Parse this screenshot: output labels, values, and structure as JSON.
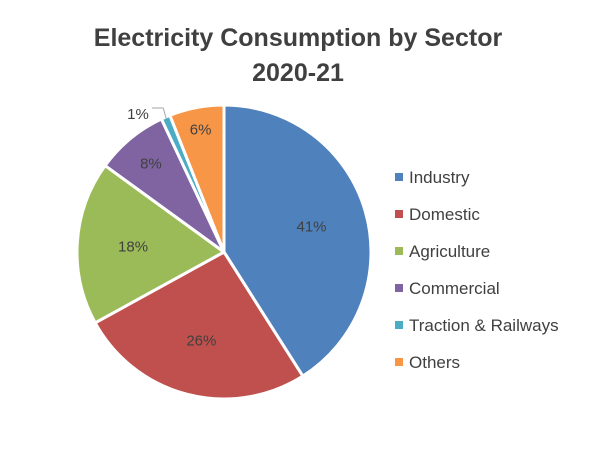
{
  "chart_data": {
    "type": "pie",
    "title": "Electricity Consumption by Sector",
    "subtitle": "2020-21",
    "slices": [
      {
        "label": "Industry",
        "value": 41,
        "display": "41%",
        "color": "#4F81BD"
      },
      {
        "label": "Domestic",
        "value": 26,
        "display": "26%",
        "color": "#C0504D"
      },
      {
        "label": "Agriculture",
        "value": 18,
        "display": "18%",
        "color": "#9BBB59"
      },
      {
        "label": "Commercial",
        "value": 8,
        "display": "8%",
        "color": "#8064A2"
      },
      {
        "label": "Traction & Railways",
        "value": 1,
        "display": "1%",
        "color": "#4BACC6"
      },
      {
        "label": "Others",
        "value": 6,
        "display": "6%",
        "color": "#F79646"
      }
    ],
    "legend_position": "right"
  }
}
